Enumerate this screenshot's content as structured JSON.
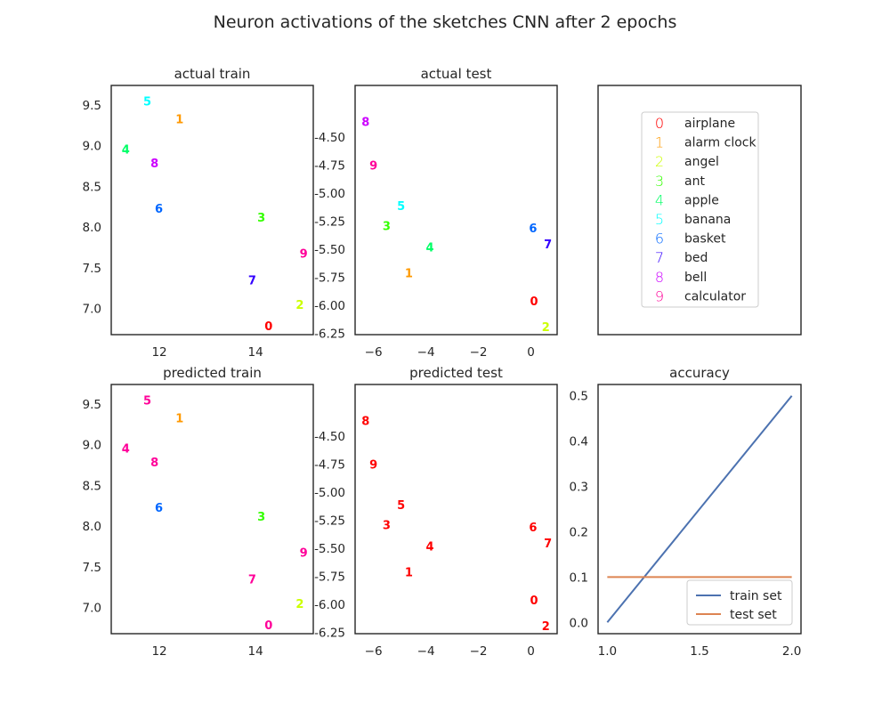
{
  "figure": {
    "title": "Neuron activations of the sketches CNN after 2 epochs"
  },
  "legend": {
    "entries": [
      {
        "mark": "0",
        "label": "airplane",
        "color": "#ff0000"
      },
      {
        "mark": "1",
        "label": "alarm clock",
        "color": "#ff9900"
      },
      {
        "mark": "2",
        "label": "angel",
        "color": "#ccff00"
      },
      {
        "mark": "3",
        "label": "ant",
        "color": "#33ff00"
      },
      {
        "mark": "4",
        "label": "apple",
        "color": "#00ff66"
      },
      {
        "mark": "5",
        "label": "banana",
        "color": "#00ffff"
      },
      {
        "mark": "6",
        "label": "basket",
        "color": "#0066ff"
      },
      {
        "mark": "7",
        "label": "bed",
        "color": "#3300ff"
      },
      {
        "mark": "8",
        "label": "bell",
        "color": "#cc00ff"
      },
      {
        "mark": "9",
        "label": "calculator",
        "color": "#ff0099"
      }
    ]
  },
  "chart_data": [
    {
      "id": "actual-train",
      "type": "scatter",
      "title": "actual train",
      "xlim": [
        11.0,
        15.2
      ],
      "ylim": [
        6.68,
        9.74
      ],
      "xticks": [
        "12",
        "14"
      ],
      "yticks": [
        "7.0",
        "7.5",
        "8.0",
        "8.5",
        "9.0",
        "9.5"
      ],
      "points": [
        {
          "label": "5",
          "x": 11.75,
          "y": 9.55,
          "color": "#00ffff"
        },
        {
          "label": "1",
          "x": 12.42,
          "y": 9.33,
          "color": "#ff9900"
        },
        {
          "label": "4",
          "x": 11.3,
          "y": 8.96,
          "color": "#00ff66"
        },
        {
          "label": "8",
          "x": 11.9,
          "y": 8.79,
          "color": "#cc00ff"
        },
        {
          "label": "6",
          "x": 11.99,
          "y": 8.23,
          "color": "#0066ff"
        },
        {
          "label": "3",
          "x": 14.12,
          "y": 8.12,
          "color": "#33ff00"
        },
        {
          "label": "9",
          "x": 15.0,
          "y": 7.68,
          "color": "#ff0099"
        },
        {
          "label": "7",
          "x": 13.93,
          "y": 7.35,
          "color": "#3300ff"
        },
        {
          "label": "2",
          "x": 14.92,
          "y": 7.05,
          "color": "#ccff00"
        },
        {
          "label": "0",
          "x": 14.27,
          "y": 6.79,
          "color": "#ff0000"
        }
      ]
    },
    {
      "id": "actual-test",
      "type": "scatter",
      "title": "actual test",
      "xlim": [
        -6.7,
        1.0
      ],
      "ylim": [
        -6.26,
        -4.04
      ],
      "xticks": [
        "−6",
        "−4",
        "−2",
        "0"
      ],
      "yticks": [
        "-4.50",
        "-4.75",
        "-5.00",
        "-5.25",
        "-5.50",
        "-5.75",
        "-6.00",
        "-6.25"
      ],
      "points": [
        {
          "label": "8",
          "x": -6.3,
          "y": -4.36,
          "color": "#cc00ff"
        },
        {
          "label": "9",
          "x": -6.0,
          "y": -4.75,
          "color": "#ff0099"
        },
        {
          "label": "5",
          "x": -4.95,
          "y": -5.11,
          "color": "#00ffff"
        },
        {
          "label": "3",
          "x": -5.5,
          "y": -5.29,
          "color": "#33ff00"
        },
        {
          "label": "6",
          "x": 0.08,
          "y": -5.31,
          "color": "#0066ff"
        },
        {
          "label": "7",
          "x": 0.65,
          "y": -5.45,
          "color": "#3300ff"
        },
        {
          "label": "4",
          "x": -3.85,
          "y": -5.48,
          "color": "#00ff66"
        },
        {
          "label": "1",
          "x": -4.65,
          "y": -5.71,
          "color": "#ff9900"
        },
        {
          "label": "0",
          "x": 0.12,
          "y": -5.96,
          "color": "#ff0000"
        },
        {
          "label": "2",
          "x": 0.57,
          "y": -6.19,
          "color": "#ccff00"
        }
      ]
    },
    {
      "id": "predicted-train",
      "type": "scatter",
      "title": "predicted train",
      "xlim": [
        11.0,
        15.2
      ],
      "ylim": [
        6.68,
        9.74
      ],
      "xticks": [
        "12",
        "14"
      ],
      "yticks": [
        "7.0",
        "7.5",
        "8.0",
        "8.5",
        "9.0",
        "9.5"
      ],
      "points": [
        {
          "label": "5",
          "x": 11.75,
          "y": 9.55,
          "color": "#ff0099"
        },
        {
          "label": "1",
          "x": 12.42,
          "y": 9.33,
          "color": "#ff9900"
        },
        {
          "label": "4",
          "x": 11.3,
          "y": 8.96,
          "color": "#ff0099"
        },
        {
          "label": "8",
          "x": 11.9,
          "y": 8.79,
          "color": "#ff0099"
        },
        {
          "label": "6",
          "x": 11.99,
          "y": 8.23,
          "color": "#0066ff"
        },
        {
          "label": "3",
          "x": 14.12,
          "y": 8.12,
          "color": "#33ff00"
        },
        {
          "label": "9",
          "x": 15.0,
          "y": 7.68,
          "color": "#ff0099"
        },
        {
          "label": "7",
          "x": 13.93,
          "y": 7.35,
          "color": "#ff0099"
        },
        {
          "label": "2",
          "x": 14.92,
          "y": 7.05,
          "color": "#ccff00"
        },
        {
          "label": "0",
          "x": 14.27,
          "y": 6.79,
          "color": "#ff0099"
        }
      ]
    },
    {
      "id": "predicted-test",
      "type": "scatter",
      "title": "predicted test",
      "xlim": [
        -6.7,
        1.0
      ],
      "ylim": [
        -6.26,
        -4.04
      ],
      "xticks": [
        "−6",
        "−4",
        "−2",
        "0"
      ],
      "yticks": [
        "-4.50",
        "-4.75",
        "-5.00",
        "-5.25",
        "-5.50",
        "-5.75",
        "-6.00",
        "-6.25"
      ],
      "points": [
        {
          "label": "8",
          "x": -6.3,
          "y": -4.36,
          "color": "#ff0000"
        },
        {
          "label": "9",
          "x": -6.0,
          "y": -4.75,
          "color": "#ff0000"
        },
        {
          "label": "5",
          "x": -4.95,
          "y": -5.11,
          "color": "#ff0000"
        },
        {
          "label": "3",
          "x": -5.5,
          "y": -5.29,
          "color": "#ff0000"
        },
        {
          "label": "6",
          "x": 0.08,
          "y": -5.31,
          "color": "#ff0000"
        },
        {
          "label": "7",
          "x": 0.65,
          "y": -5.45,
          "color": "#ff0000"
        },
        {
          "label": "4",
          "x": -3.85,
          "y": -5.48,
          "color": "#ff0000"
        },
        {
          "label": "1",
          "x": -4.65,
          "y": -5.71,
          "color": "#ff0000"
        },
        {
          "label": "0",
          "x": 0.12,
          "y": -5.96,
          "color": "#ff0000"
        },
        {
          "label": "2",
          "x": 0.57,
          "y": -6.19,
          "color": "#ff0000"
        }
      ]
    },
    {
      "id": "accuracy",
      "type": "line",
      "title": "accuracy",
      "xlim": [
        0.95,
        2.05
      ],
      "ylim": [
        -0.025,
        0.525
      ],
      "xticks": [
        "1.0",
        "1.5",
        "2.0"
      ],
      "yticks": [
        "0.0",
        "0.1",
        "0.2",
        "0.3",
        "0.4",
        "0.5"
      ],
      "x": [
        1.0,
        2.0
      ],
      "series": [
        {
          "name": "train set",
          "values": [
            0.0,
            0.5
          ],
          "color": "#4c72b0"
        },
        {
          "name": "test set",
          "values": [
            0.1,
            0.1
          ],
          "color": "#dd8452"
        }
      ],
      "legend": "lower-right"
    }
  ]
}
